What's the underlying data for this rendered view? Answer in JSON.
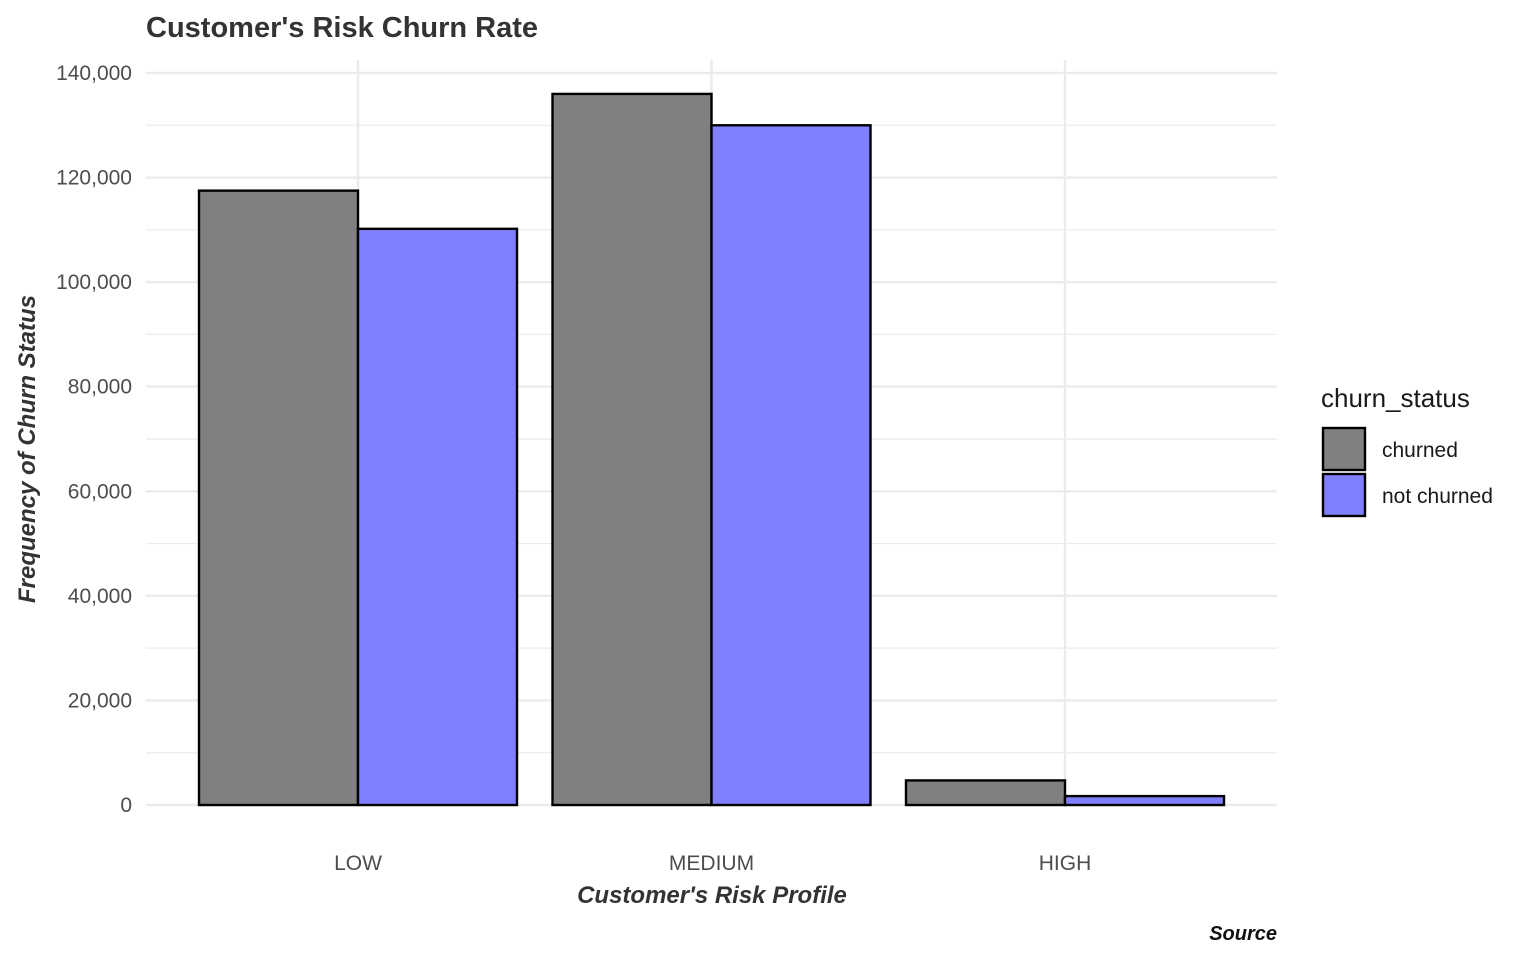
{
  "chart_data": {
    "type": "bar",
    "title": "Customer's Risk Churn Rate",
    "xlabel": "Customer's Risk Profile",
    "ylabel": "Frequency of Churn Status",
    "caption": "Source",
    "categories": [
      "LOW",
      "MEDIUM",
      "HIGH"
    ],
    "series": [
      {
        "name": "churned",
        "values": [
          117500,
          136000,
          4700
        ],
        "color": "#808080"
      },
      {
        "name": "not churned",
        "values": [
          110200,
          130000,
          1700
        ],
        "color": "#8080ff"
      }
    ],
    "ylim": [
      0,
      140000
    ],
    "y_ticks": [
      0,
      20000,
      40000,
      60000,
      80000,
      100000,
      120000,
      140000
    ],
    "y_tick_labels": [
      "0",
      "20,000",
      "40,000",
      "60,000",
      "80,000",
      "100,000",
      "120,000",
      "140,000"
    ],
    "grid": true,
    "legend": {
      "title": "churn_status",
      "position": "right"
    },
    "bar_outline_color": "#000000",
    "gridline_color": "#ebebeb"
  }
}
